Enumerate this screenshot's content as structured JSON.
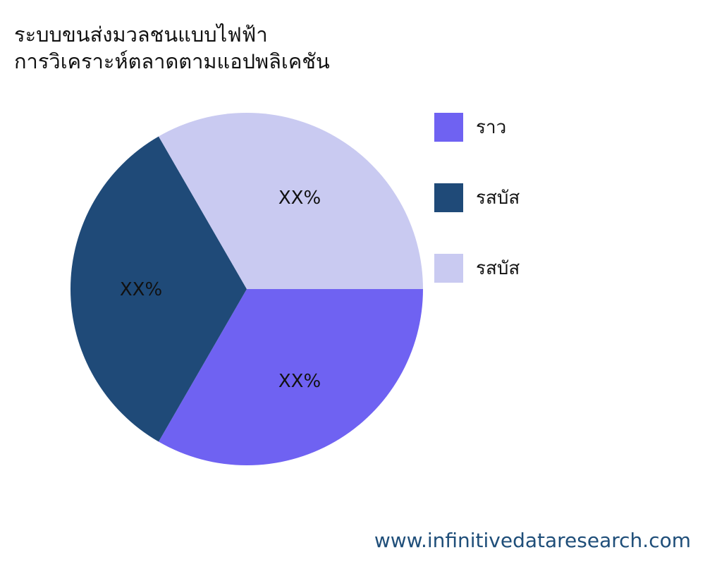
{
  "chart_data": {
    "type": "pie",
    "title": [
      "ระบบขนส่งมวลชนแบบไฟฟ้า",
      "การวิเคราะห์ตลาดตามแอปพลิเคชัน"
    ],
    "slices": [
      {
        "name": "ราว",
        "value": 33.33,
        "label": "XX%",
        "color": "#6f62f2"
      },
      {
        "name": "รสบัส",
        "value": 33.33,
        "label": "XX%",
        "color": "#1f4a78"
      },
      {
        "name": "รสบัส",
        "value": 33.33,
        "label": "XX%",
        "color": "#c9caf1"
      }
    ],
    "legend_position": "right"
  },
  "footer": "www.infinitivedataresearch.com"
}
